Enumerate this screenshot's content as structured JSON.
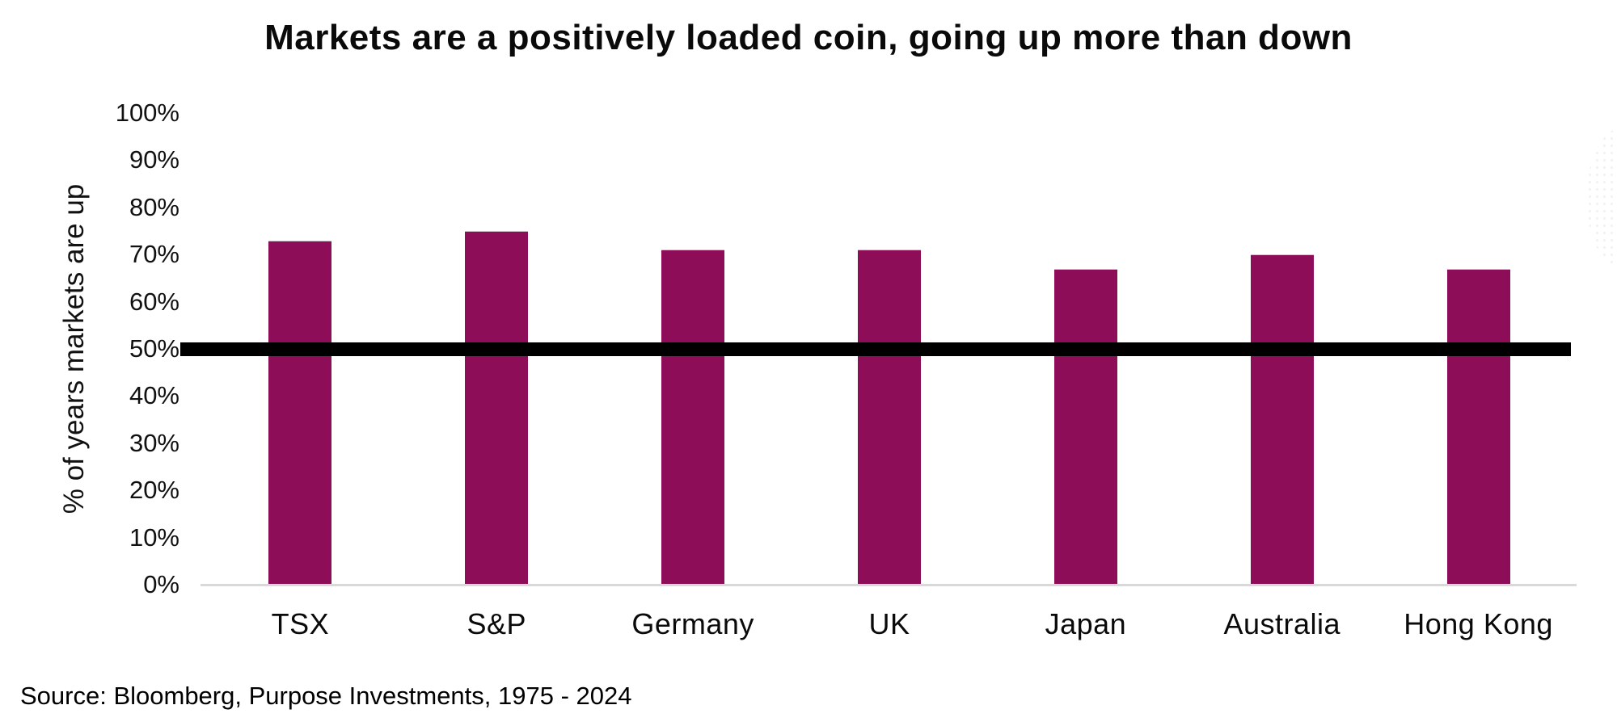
{
  "chart_data": {
    "type": "bar",
    "title": "Markets are a positively loaded coin, going up more than down",
    "categories": [
      "TSX",
      "S&P",
      "Germany",
      "UK",
      "Japan",
      "Australia",
      "Hong Kong"
    ],
    "values": [
      73,
      75,
      71,
      71,
      67,
      70,
      67
    ],
    "xlabel": "",
    "ylabel": "% of years markets are up",
    "ylim": [
      0,
      100
    ],
    "ytick_step": 10,
    "yticks": [
      "100%",
      "90%",
      "80%",
      "70%",
      "60%",
      "50%",
      "40%",
      "30%",
      "20%",
      "10%",
      "0%"
    ],
    "grid": false,
    "legend_position": "none",
    "bar_color": "#8E0D59",
    "axis_line_color": "#D9D9D9",
    "reference_line": {
      "value": 50,
      "color": "#000000",
      "thickness_px": 17
    }
  },
  "source_note": "Source: Bloomberg, Purpose Investments, 1975 - 2024"
}
